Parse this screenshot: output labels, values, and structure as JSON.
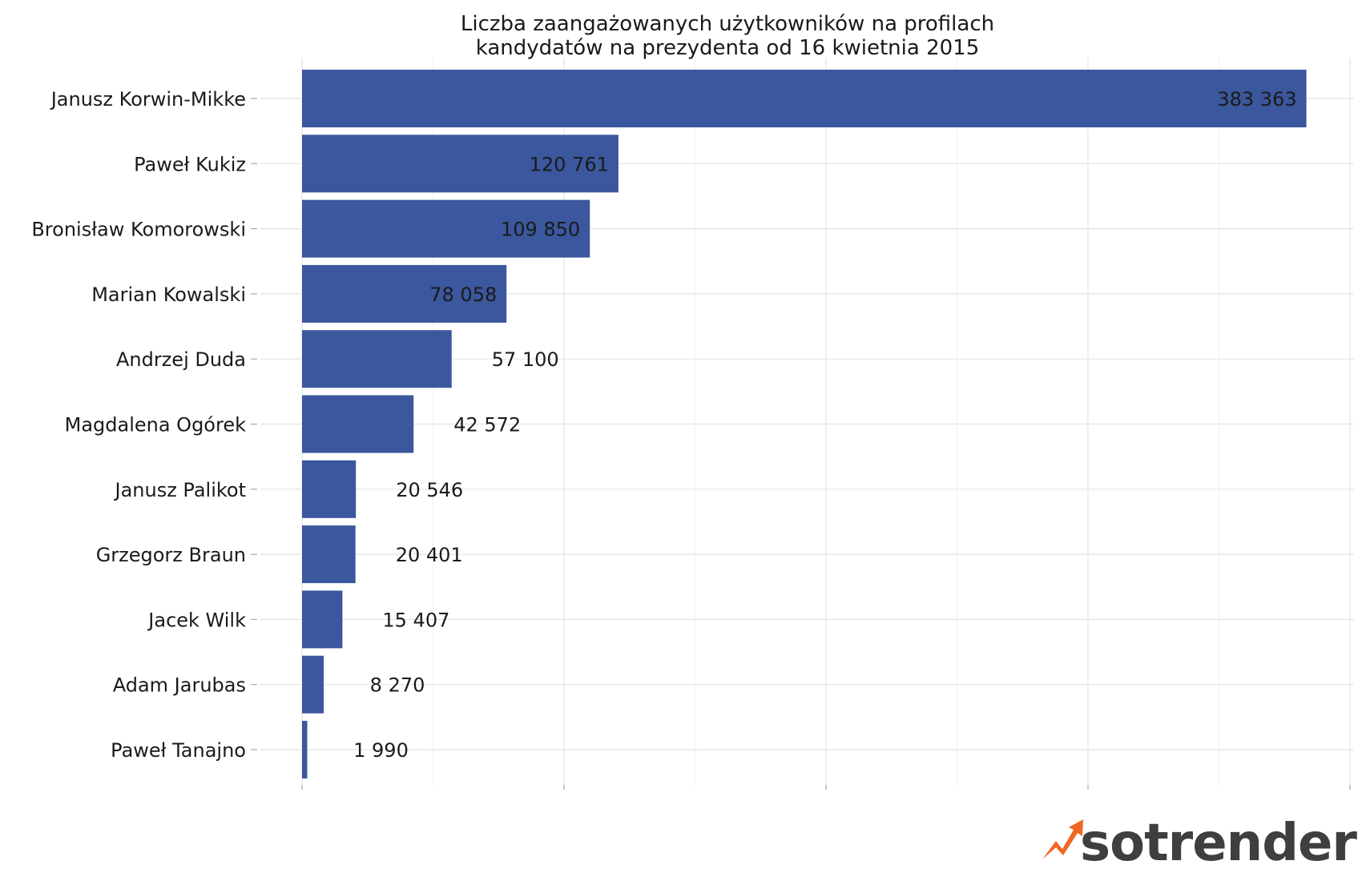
{
  "chart_data": {
    "type": "bar",
    "orientation": "horizontal",
    "title": [
      "Liczba zaangażowanych użytkowników na profilach",
      "kandydatów na prezydenta od 16 kwietnia 2015"
    ],
    "categories": [
      "Janusz Korwin-Mikke",
      "Paweł Kukiz",
      "Bronisław Komorowski",
      "Marian Kowalski",
      "Andrzej Duda",
      "Magdalena Ogórek",
      "Janusz Palikot",
      "Grzegorz Braun",
      "Jacek Wilk",
      "Adam Jarubas",
      "Paweł Tanajno"
    ],
    "values": [
      383363,
      120761,
      109850,
      78058,
      57100,
      42572,
      20546,
      20401,
      15407,
      8270,
      1990
    ],
    "value_labels": [
      "383 363",
      "120 761",
      "109 850",
      "78 058",
      "57 100",
      "42 572",
      "20 546",
      "20 401",
      "15 407",
      "8 270",
      "1 990"
    ],
    "xlim": [
      0,
      400000
    ],
    "xlabel": "",
    "ylabel": "",
    "x_tick_labels_shown": false,
    "grid": true,
    "bar_color": "#3b579d"
  },
  "brand": {
    "logo_text": "sotrender",
    "logo_icon": "trend-arrow-icon",
    "logo_icon_color": "#f26522",
    "logo_text_color": "#3f3f3f"
  }
}
